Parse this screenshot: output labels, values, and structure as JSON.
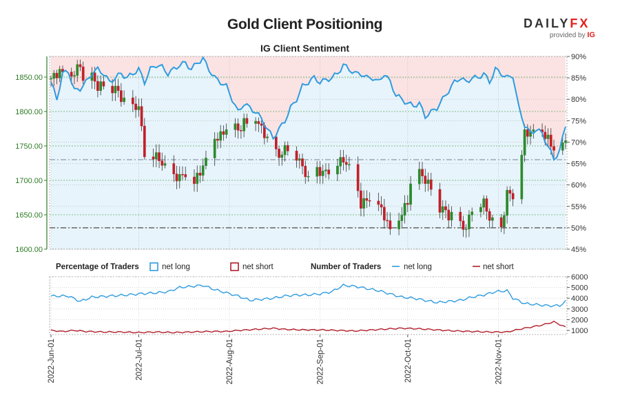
{
  "header": {
    "title": "Gold Client Positioning",
    "subtitle": "IG Client Sentiment",
    "logo_main_a": "DAILY",
    "logo_main_b": "FX",
    "logo_sub": "provided by",
    "logo_sub_ig": "IG"
  },
  "legend": {
    "pct_title": "Percentage of Traders",
    "pct_long": "net long",
    "pct_short": "net short",
    "num_title": "Number of Traders",
    "num_long": "net long",
    "num_short": "net short"
  },
  "colors": {
    "candle_up": "#2d8a2d",
    "candle_down": "#c0202a",
    "sentiment_line": "#2e9be0",
    "long_fill": "#e7f4fb",
    "short_fill": "#fbe3e3",
    "axis_green": "#2d7a24",
    "net_long_line": "#2e9be0",
    "net_short_line": "#b01e2a"
  },
  "chart_data": [
    {
      "type": "candlestick",
      "name": "price",
      "left_axis": {
        "ticks": [
          "1600.00",
          "1650.00",
          "1700.00",
          "1750.00",
          "1800.00",
          "1850.00"
        ],
        "range": [
          1600,
          1880
        ]
      },
      "right_axis": {
        "ticks": [
          "45%",
          "50%",
          "55%",
          "60%",
          "65%",
          "70%",
          "75%",
          "80%",
          "85%",
          "90%"
        ],
        "range": [
          45,
          90
        ]
      },
      "x_ticks": [
        "2022-Jun-01",
        "2022-Jul-01",
        "2022-Aug-01",
        "2022-Sep-01",
        "2022-Oct-01",
        "2022-Nov-01"
      ],
      "x_tick_days": [
        0,
        30,
        61,
        92,
        122,
        153
      ],
      "x_range_days": [
        0,
        176
      ],
      "ref_levels": {
        "price": 1730,
        "percent": 50
      },
      "close_anchors": [
        [
          0,
          1848
        ],
        [
          3,
          1858
        ],
        [
          6,
          1852
        ],
        [
          8,
          1855
        ],
        [
          10,
          1870
        ],
        [
          12,
          1818
        ],
        [
          14,
          1852
        ],
        [
          16,
          1835
        ],
        [
          18,
          1840
        ],
        [
          20,
          1830
        ],
        [
          22,
          1835
        ],
        [
          24,
          1820
        ],
        [
          26,
          1810
        ],
        [
          28,
          1805
        ],
        [
          30,
          1808
        ],
        [
          32,
          1740
        ],
        [
          34,
          1738
        ],
        [
          36,
          1735
        ],
        [
          38,
          1725
        ],
        [
          40,
          1712
        ],
        [
          42,
          1705
        ],
        [
          44,
          1705
        ],
        [
          46,
          1710
        ],
        [
          48,
          1690
        ],
        [
          50,
          1705
        ],
        [
          52,
          1720
        ],
        [
          54,
          1738
        ],
        [
          56,
          1760
        ],
        [
          58,
          1765
        ],
        [
          60,
          1775
        ],
        [
          62,
          1790
        ],
        [
          64,
          1770
        ],
        [
          66,
          1785
        ],
        [
          68,
          1782
        ],
        [
          70,
          1790
        ],
        [
          72,
          1775
        ],
        [
          74,
          1760
        ],
        [
          76,
          1745
        ],
        [
          78,
          1735
        ],
        [
          80,
          1745
        ],
        [
          82,
          1750
        ],
        [
          84,
          1735
        ],
        [
          86,
          1720
        ],
        [
          88,
          1700
        ],
        [
          90,
          1715
        ],
        [
          92,
          1712
        ],
        [
          94,
          1712
        ],
        [
          96,
          1718
        ],
        [
          98,
          1725
        ],
        [
          100,
          1730
        ],
        [
          102,
          1718
        ],
        [
          104,
          1700
        ],
        [
          106,
          1665
        ],
        [
          108,
          1672
        ],
        [
          110,
          1675
        ],
        [
          112,
          1665
        ],
        [
          114,
          1648
        ],
        [
          116,
          1628
        ],
        [
          118,
          1635
        ],
        [
          120,
          1652
        ],
        [
          122,
          1670
        ],
        [
          124,
          1718
        ],
        [
          126,
          1712
        ],
        [
          128,
          1700
        ],
        [
          130,
          1690
        ],
        [
          132,
          1658
        ],
        [
          134,
          1660
        ],
        [
          136,
          1648
        ],
        [
          138,
          1650
        ],
        [
          140,
          1635
        ],
        [
          142,
          1630
        ],
        [
          144,
          1660
        ],
        [
          146,
          1665
        ],
        [
          148,
          1668
        ],
        [
          150,
          1645
        ],
        [
          152,
          1635
        ],
        [
          154,
          1628
        ],
        [
          156,
          1682
        ],
        [
          158,
          1678
        ],
        [
          160,
          1710
        ],
        [
          162,
          1768
        ],
        [
          164,
          1770
        ],
        [
          166,
          1770
        ],
        [
          168,
          1770
        ],
        [
          170,
          1760
        ],
        [
          172,
          1745
        ],
        [
          174,
          1750
        ],
        [
          176,
          1755
        ]
      ],
      "sentiment_anchors": [
        [
          0,
          84
        ],
        [
          2,
          80
        ],
        [
          4,
          86
        ],
        [
          6,
          86.5
        ],
        [
          8,
          82
        ],
        [
          10,
          82.5
        ],
        [
          12,
          84
        ],
        [
          14,
          86
        ],
        [
          16,
          87
        ],
        [
          18,
          86
        ],
        [
          20,
          84
        ],
        [
          22,
          85
        ],
        [
          24,
          86
        ],
        [
          26,
          85
        ],
        [
          28,
          86
        ],
        [
          30,
          87
        ],
        [
          32,
          84
        ],
        [
          34,
          87
        ],
        [
          36,
          88
        ],
        [
          38,
          87.5
        ],
        [
          40,
          86
        ],
        [
          42,
          87
        ],
        [
          44,
          88
        ],
        [
          46,
          88.5
        ],
        [
          48,
          87
        ],
        [
          50,
          88.5
        ],
        [
          52,
          89.5
        ],
        [
          54,
          87
        ],
        [
          56,
          85
        ],
        [
          58,
          84
        ],
        [
          60,
          83
        ],
        [
          62,
          80
        ],
        [
          64,
          77
        ],
        [
          66,
          79
        ],
        [
          68,
          78
        ],
        [
          70,
          77
        ],
        [
          72,
          75.5
        ],
        [
          74,
          73
        ],
        [
          76,
          71
        ],
        [
          78,
          73
        ],
        [
          80,
          75
        ],
        [
          82,
          78
        ],
        [
          84,
          80
        ],
        [
          86,
          83
        ],
        [
          88,
          84
        ],
        [
          90,
          85
        ],
        [
          92,
          84
        ],
        [
          94,
          84.5
        ],
        [
          96,
          85
        ],
        [
          98,
          86
        ],
        [
          100,
          88
        ],
        [
          102,
          87
        ],
        [
          104,
          86
        ],
        [
          106,
          86
        ],
        [
          108,
          85
        ],
        [
          110,
          85
        ],
        [
          112,
          84
        ],
        [
          114,
          86
        ],
        [
          116,
          84
        ],
        [
          118,
          81
        ],
        [
          120,
          80
        ],
        [
          122,
          79
        ],
        [
          124,
          78.5
        ],
        [
          126,
          79
        ],
        [
          128,
          76
        ],
        [
          130,
          77
        ],
        [
          132,
          78
        ],
        [
          134,
          80
        ],
        [
          136,
          82
        ],
        [
          138,
          84
        ],
        [
          140,
          85
        ],
        [
          142,
          84
        ],
        [
          144,
          85
        ],
        [
          146,
          85
        ],
        [
          148,
          86
        ],
        [
          150,
          84
        ],
        [
          152,
          87
        ],
        [
          154,
          86
        ],
        [
          156,
          85
        ],
        [
          158,
          85.5
        ],
        [
          160,
          78
        ],
        [
          162,
          74
        ],
        [
          164,
          72
        ],
        [
          166,
          73
        ],
        [
          168,
          72
        ],
        [
          170,
          69
        ],
        [
          172,
          66
        ],
        [
          174,
          68
        ],
        [
          176,
          74
        ]
      ]
    },
    {
      "type": "line",
      "name": "number-of-traders",
      "right_axis": {
        "ticks": [
          "1000",
          "2000",
          "3000",
          "4000",
          "5000",
          "6000"
        ],
        "range": [
          0,
          6000
        ]
      },
      "series": [
        {
          "name": "net long",
          "anchors": [
            [
              0,
              4200
            ],
            [
              6,
              4200
            ],
            [
              10,
              3700
            ],
            [
              14,
              4100
            ],
            [
              20,
              4200
            ],
            [
              26,
              4300
            ],
            [
              30,
              4400
            ],
            [
              36,
              4500
            ],
            [
              40,
              4600
            ],
            [
              44,
              5000
            ],
            [
              48,
              5100
            ],
            [
              52,
              5200
            ],
            [
              56,
              4800
            ],
            [
              60,
              4500
            ],
            [
              64,
              4200
            ],
            [
              68,
              3800
            ],
            [
              72,
              3900
            ],
            [
              76,
              4000
            ],
            [
              80,
              4200
            ],
            [
              84,
              4300
            ],
            [
              88,
              4300
            ],
            [
              92,
              4400
            ],
            [
              96,
              4600
            ],
            [
              100,
              5200
            ],
            [
              104,
              5100
            ],
            [
              108,
              4900
            ],
            [
              112,
              4700
            ],
            [
              116,
              4400
            ],
            [
              120,
              4100
            ],
            [
              124,
              4000
            ],
            [
              128,
              3800
            ],
            [
              132,
              3600
            ],
            [
              136,
              3700
            ],
            [
              140,
              3800
            ],
            [
              144,
              4100
            ],
            [
              148,
              4300
            ],
            [
              152,
              4600
            ],
            [
              156,
              4700
            ],
            [
              158,
              4000
            ],
            [
              162,
              3500
            ],
            [
              166,
              3400
            ],
            [
              170,
              3300
            ],
            [
              174,
              3300
            ],
            [
              176,
              3700
            ]
          ]
        },
        {
          "name": "net short",
          "anchors": [
            [
              0,
              1000
            ],
            [
              4,
              900
            ],
            [
              8,
              1000
            ],
            [
              12,
              900
            ],
            [
              18,
              850
            ],
            [
              24,
              850
            ],
            [
              30,
              800
            ],
            [
              36,
              850
            ],
            [
              42,
              800
            ],
            [
              48,
              850
            ],
            [
              54,
              900
            ],
            [
              60,
              900
            ],
            [
              64,
              1000
            ],
            [
              70,
              1100
            ],
            [
              76,
              1200
            ],
            [
              80,
              1100
            ],
            [
              86,
              1050
            ],
            [
              92,
              1050
            ],
            [
              98,
              1000
            ],
            [
              104,
              950
            ],
            [
              110,
              1050
            ],
            [
              116,
              1150
            ],
            [
              120,
              1200
            ],
            [
              126,
              1150
            ],
            [
              132,
              1050
            ],
            [
              138,
              950
            ],
            [
              144,
              900
            ],
            [
              150,
              850
            ],
            [
              156,
              850
            ],
            [
              160,
              1100
            ],
            [
              164,
              1300
            ],
            [
              168,
              1500
            ],
            [
              172,
              1800
            ],
            [
              176,
              1300
            ]
          ]
        }
      ]
    }
  ]
}
